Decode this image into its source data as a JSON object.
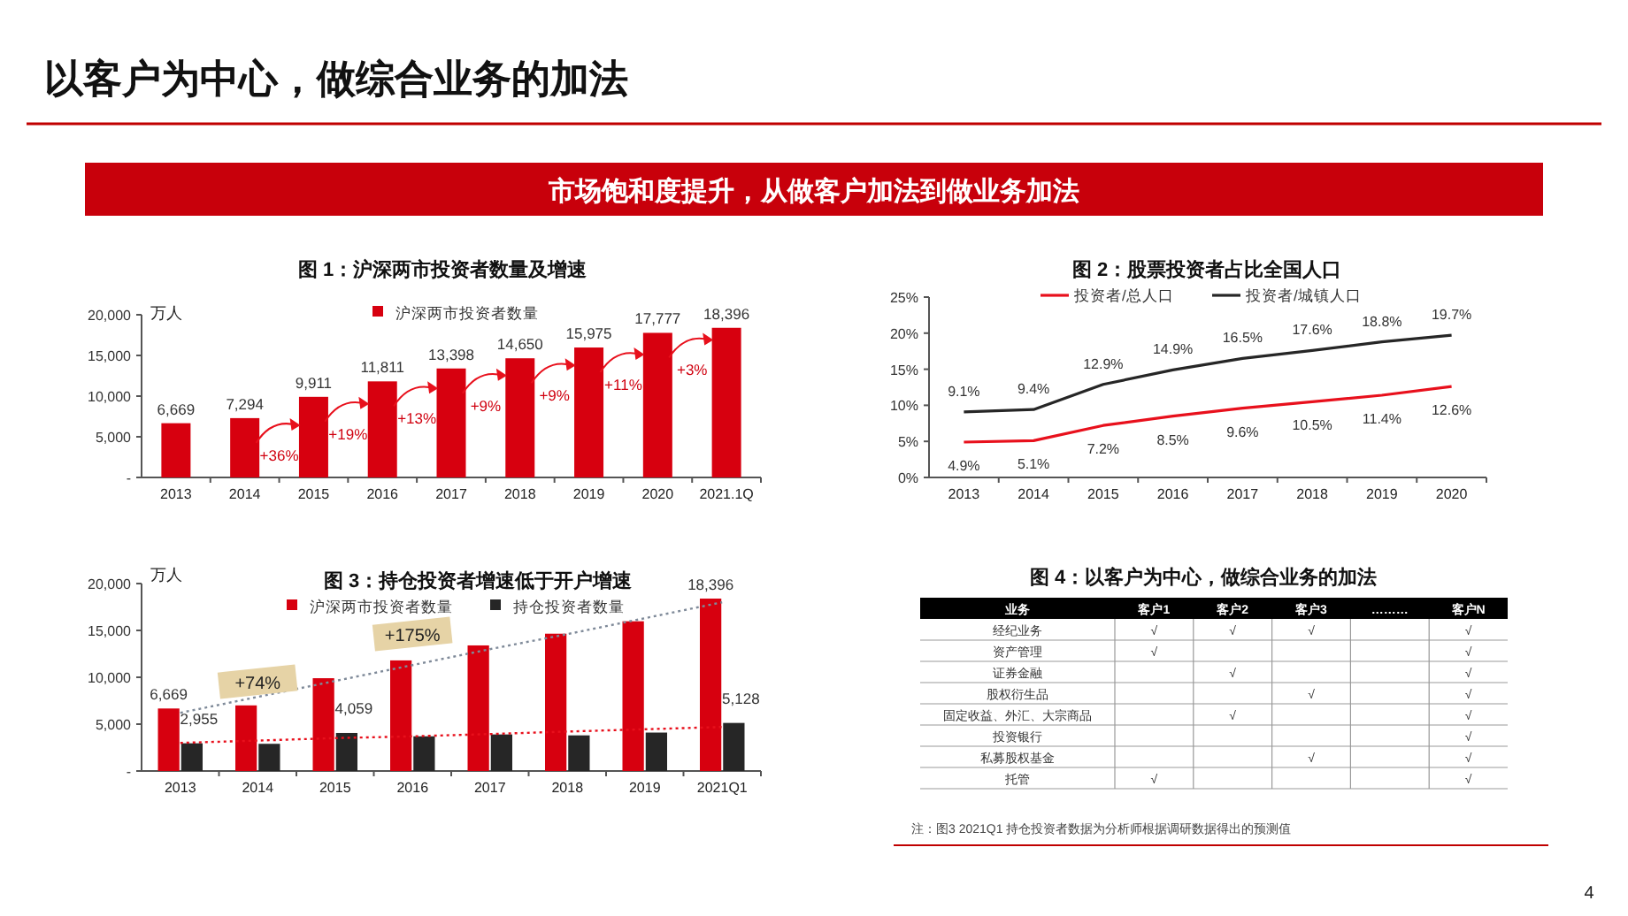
{
  "chart_data": [
    {
      "type": "other",
      "title": "以客户为中心，做综合业务的加法",
      "subtitle": "市场饱和度提升，从做客户加法到做业务加法",
      "annotations": [
        "注：图3 2021Q1 持仓投资者数据为分析师根据调研数据得出的预测值",
        "4"
      ]
    },
    {
      "type": "bar",
      "title": "图 1：沪深两市投资者数量及增速",
      "ylabel": "万人",
      "categories": [
        "2013",
        "2014",
        "2015",
        "2016",
        "2017",
        "2018",
        "2019",
        "2020",
        "2021.1Q"
      ],
      "series": [
        {
          "name": "沪深两市投资者数量",
          "color": "#d7000f",
          "values": [
            6669,
            7294,
            9911,
            11811,
            13398,
            14650,
            15975,
            17777,
            18396
          ],
          "value_labels": [
            "6,669",
            "7,294",
            "9,911",
            "11,811",
            "13,398",
            "14,650",
            "15,975",
            "17,777",
            "18,396"
          ]
        }
      ],
      "ylim": [
        0,
        20000
      ],
      "yticks": [
        {
          "value": 0,
          "label": "-"
        },
        {
          "value": 5000,
          "label": "5,000"
        },
        {
          "value": 10000,
          "label": "10,000"
        },
        {
          "value": 15000,
          "label": "15,000"
        },
        {
          "value": 20000,
          "label": "20,000"
        }
      ],
      "legend": "top",
      "grid": false,
      "annotations": [
        "+36%",
        "+19%",
        "+13%",
        "+9%",
        "+9%",
        "+11%",
        "+3%"
      ]
    },
    {
      "type": "line",
      "title": "图 2：股票投资者占比全国人口",
      "categories": [
        "2013",
        "2014",
        "2015",
        "2016",
        "2017",
        "2018",
        "2019",
        "2020"
      ],
      "series": [
        {
          "name": "投资者/总人口",
          "color": "#e8101c",
          "values": [
            4.9,
            5.1,
            7.2,
            8.5,
            9.6,
            10.5,
            11.4,
            12.6
          ],
          "value_labels": [
            "4.9%",
            "5.1%",
            "7.2%",
            "8.5%",
            "9.6%",
            "10.5%",
            "11.4%",
            "12.6%"
          ]
        },
        {
          "name": "投资者/城镇人口",
          "color": "#262626",
          "values": [
            9.1,
            9.4,
            12.9,
            14.9,
            16.5,
            17.6,
            18.8,
            19.7
          ],
          "value_labels": [
            "9.1%",
            "9.4%",
            "12.9%",
            "14.9%",
            "16.5%",
            "17.6%",
            "18.8%",
            "19.7%"
          ]
        }
      ],
      "ylim": [
        0,
        25
      ],
      "yticks": [
        {
          "value": 0,
          "label": "0%"
        },
        {
          "value": 5,
          "label": "5%"
        },
        {
          "value": 10,
          "label": "10%"
        },
        {
          "value": 15,
          "label": "15%"
        },
        {
          "value": 20,
          "label": "20%"
        },
        {
          "value": 25,
          "label": "25%"
        }
      ],
      "legend": "top",
      "grid": false,
      "marker": "none",
      "line_style": "solid"
    },
    {
      "type": "bar",
      "title": "图 3：持仓投资者增速低于开户增速",
      "ylabel": "万人",
      "categories": [
        "2013",
        "2014",
        "2015",
        "2016",
        "2017",
        "2018",
        "2019",
        "2021Q1"
      ],
      "series": [
        {
          "name": "沪深两市投资者数量",
          "color": "#d7000f",
          "values": [
            6669,
            7000,
            9900,
            11800,
            13400,
            14650,
            15975,
            18396
          ],
          "value_labels": [
            "6,669",
            null,
            null,
            null,
            null,
            null,
            null,
            "18,396"
          ]
        },
        {
          "name": "持仓投资者数量",
          "color": "#262626",
          "values": [
            2955,
            2900,
            4059,
            3700,
            3900,
            3800,
            4100,
            5128
          ],
          "value_labels": [
            "2,955",
            null,
            "4,059",
            null,
            null,
            null,
            null,
            "5,128"
          ]
        },
        {
          "type": "line",
          "color": "#7f8a99",
          "line_style": "dotted",
          "values": [
            6200,
            7900,
            9600,
            11300,
            13000,
            14600,
            16300,
            18000
          ]
        },
        {
          "type": "line",
          "color": "#e8101c",
          "line_style": "dotted",
          "values": [
            3000,
            3250,
            3500,
            3700,
            3950,
            4200,
            4450,
            4700
          ]
        }
      ],
      "ylim": [
        0,
        20000
      ],
      "yticks": [
        {
          "value": 0,
          "label": "-"
        },
        {
          "value": 5000,
          "label": "5,000"
        },
        {
          "value": 10000,
          "label": "10,000"
        },
        {
          "value": 15000,
          "label": "15,000"
        },
        {
          "value": 20000,
          "label": "20,000"
        }
      ],
      "legend": "top",
      "grid": false,
      "annotations": [
        "+175%",
        "+74%"
      ]
    },
    {
      "type": "other",
      "title": "图 4：以客户为中心，做综合业务的加法",
      "categories": [
        "业务",
        "客户1",
        "客户2",
        "客户3",
        "………",
        "客户N"
      ],
      "y_categories": [
        "经纪业务",
        "资产管理",
        "证券金融",
        "股权衍生品",
        "固定收益、外汇、大宗商品",
        "投资银行",
        "私募股权基金",
        "托管"
      ],
      "cell_labels": [
        [
          "√",
          "√",
          "√",
          null,
          "√"
        ],
        [
          "√",
          null,
          null,
          null,
          "√"
        ],
        [
          null,
          "√",
          null,
          null,
          "√"
        ],
        [
          null,
          null,
          "√",
          null,
          "√"
        ],
        [
          null,
          "√",
          null,
          null,
          "√"
        ],
        [
          null,
          null,
          null,
          null,
          "√"
        ],
        [
          null,
          null,
          "√",
          null,
          "√"
        ],
        [
          "√",
          null,
          null,
          null,
          "√"
        ]
      ]
    }
  ]
}
